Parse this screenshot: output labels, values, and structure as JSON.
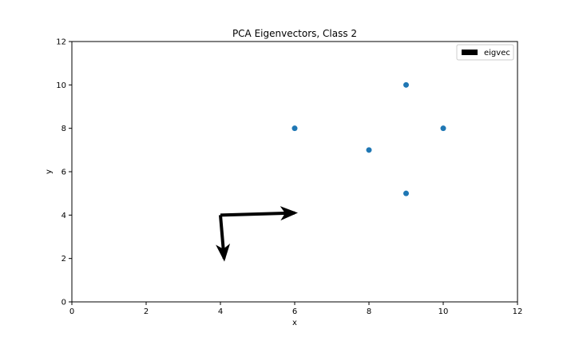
{
  "chart_data": {
    "type": "scatter",
    "title": "PCA Eigenvectors, Class 2",
    "xlabel": "x",
    "ylabel": "y",
    "xlim": [
      0,
      12
    ],
    "ylim": [
      0,
      12
    ],
    "xticks": [
      "0",
      "2",
      "4",
      "6",
      "8",
      "10",
      "12"
    ],
    "yticks": [
      "0",
      "2",
      "4",
      "6",
      "8",
      "10",
      "12"
    ],
    "grid": false,
    "legend_position": "top-right",
    "points": [
      {
        "x": 6,
        "y": 8
      },
      {
        "x": 8,
        "y": 7
      },
      {
        "x": 9,
        "y": 10
      },
      {
        "x": 9,
        "y": 5
      },
      {
        "x": 10,
        "y": 8
      }
    ],
    "point_color": "#1f77b4",
    "eigenvectors": {
      "label": "eigvec",
      "color": "#000000",
      "origin": [
        4,
        4
      ],
      "vectors": [
        {
          "dx": 2.0,
          "dy": 0.1
        },
        {
          "dx": 0.1,
          "dy": -2.0
        }
      ]
    }
  }
}
